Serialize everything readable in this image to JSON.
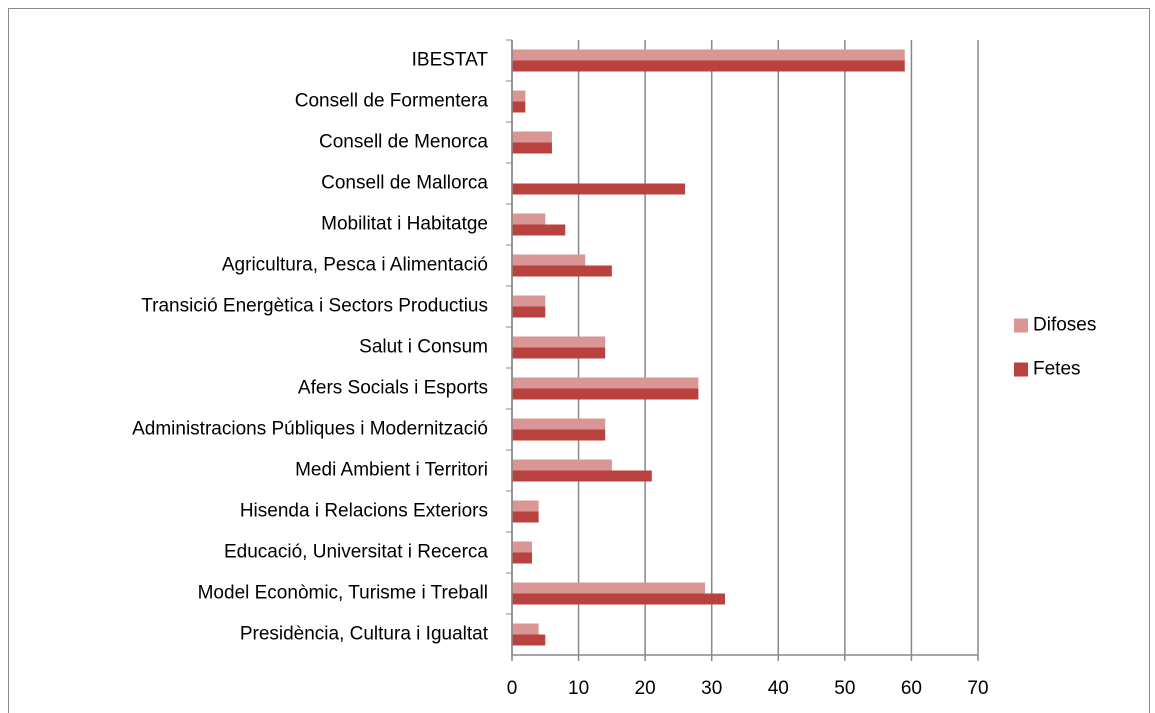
{
  "chart_data": {
    "type": "hbar",
    "categories": [
      "IBESTAT",
      "Consell de Formentera",
      "Consell de Menorca",
      "Consell de Mallorca",
      "Mobilitat i Habitatge",
      "Agricultura, Pesca i Alimentació",
      "Transició Energètica i Sectors Productius",
      "Salut i Consum",
      "Afers Socials i Esports",
      "Administracions Públiques i Modernització",
      "Medi Ambient i Territori",
      "Hisenda i Relacions Exteriors",
      "Educació, Universitat i Recerca",
      "Model Econòmic, Turisme i Treball",
      "Presidència, Cultura i Igualtat"
    ],
    "series": [
      {
        "name": "Difoses",
        "color": "#d99694",
        "values": [
          59,
          2,
          6,
          0,
          5,
          11,
          5,
          14,
          28,
          14,
          15,
          4,
          3,
          29,
          4
        ]
      },
      {
        "name": "Fetes",
        "color": "#b9413e",
        "values": [
          59,
          2,
          6,
          26,
          8,
          15,
          5,
          14,
          28,
          14,
          21,
          4,
          3,
          32,
          5
        ]
      }
    ],
    "xlim": [
      0,
      70
    ],
    "xticks": [
      0,
      10,
      20,
      30,
      40,
      50,
      60,
      70
    ],
    "grid": true,
    "legend": "right"
  }
}
